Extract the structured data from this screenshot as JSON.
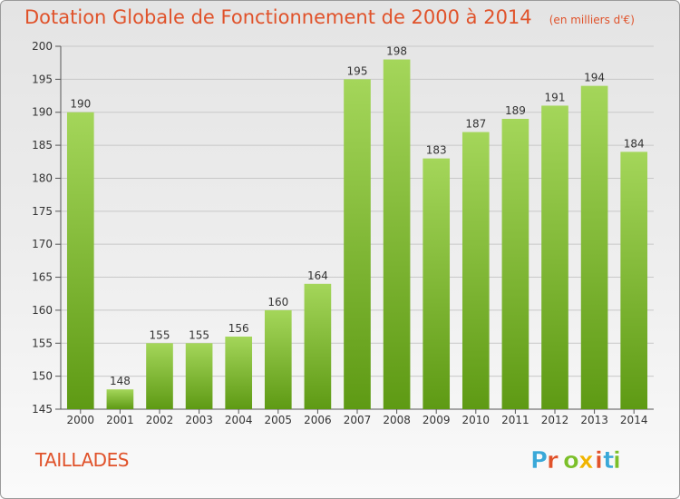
{
  "header": {
    "title": "Dotation Globale de Fonctionnement de 2000 à 2014",
    "subtitle": "(en milliers d'€)"
  },
  "footer": {
    "commune": "TAILLADES",
    "brand": "Proxiti",
    "brand_colors": [
      "#3aa8d8",
      "#e0522a",
      "#7bbf2a",
      "#f0b400",
      "#e0522a",
      "#3aa8d8",
      "#7bbf2a"
    ]
  },
  "colors": {
    "bar_top": "#a4d65a",
    "bar_bottom": "#5e9a14",
    "title": "#e0522a",
    "grid": "#c8c8c8",
    "text": "#333333"
  },
  "chart_data": {
    "type": "bar",
    "title": "Dotation Globale de Fonctionnement de 2000 à 2014",
    "subtitle": "(en milliers d'€)",
    "categories": [
      "2000",
      "2001",
      "2002",
      "2003",
      "2004",
      "2005",
      "2006",
      "2007",
      "2008",
      "2009",
      "2010",
      "2011",
      "2012",
      "2013",
      "2014"
    ],
    "values": [
      190,
      148,
      155,
      155,
      156,
      160,
      164,
      195,
      198,
      183,
      187,
      189,
      191,
      194,
      184
    ],
    "data_labels": [
      "190",
      "148",
      "155",
      "155",
      "156",
      "160",
      "164",
      "195",
      "198",
      "183",
      "187",
      "189",
      "191",
      "194",
      "184"
    ],
    "xlabel": "",
    "ylabel": "",
    "ylim": [
      145,
      200
    ],
    "yticks": [
      145,
      150,
      155,
      160,
      165,
      170,
      175,
      180,
      185,
      190,
      195,
      200
    ],
    "ytick_labels": [
      "145",
      "150",
      "155",
      "160",
      "165",
      "170",
      "175",
      "180",
      "185",
      "190",
      "195",
      "200"
    ],
    "grid": true
  }
}
